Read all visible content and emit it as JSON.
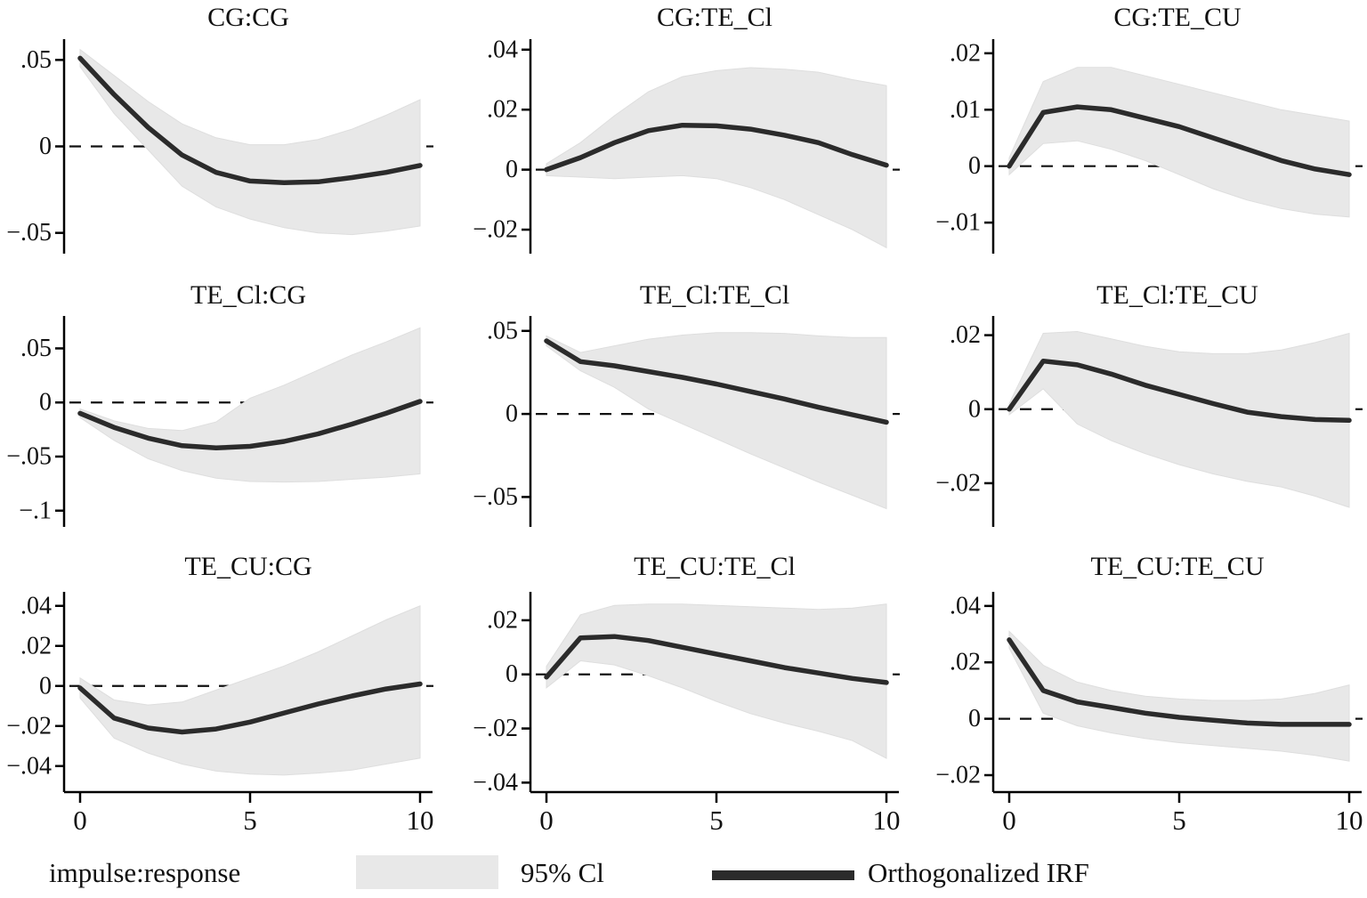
{
  "figure": {
    "kind": "impulse-response-function-matrix",
    "colors": {
      "background": "#ffffff",
      "band": "#e8e8e8",
      "band_edge": "#dedede",
      "line": "#2b2b2b",
      "text": "#111111",
      "axis": "#000000",
      "zero_line": "#111111"
    }
  },
  "legend": {
    "impulse_response_label": "impulse:response",
    "ci_label": "95% Cl",
    "irf_label": "Orthogonalized IRF"
  },
  "chart_data": [
    {
      "type": "line",
      "title": "CG:CG",
      "impulse": "CG",
      "response": "CG",
      "x": [
        0,
        1,
        2,
        3,
        4,
        5,
        6,
        7,
        8,
        9,
        10
      ],
      "irf": [
        0.051,
        0.03,
        0.011,
        -0.005,
        -0.015,
        -0.02,
        -0.021,
        -0.0205,
        -0.018,
        -0.015,
        -0.011
      ],
      "ci_upper": [
        0.056,
        0.041,
        0.026,
        0.013,
        0.005,
        0.001,
        0.001,
        0.004,
        0.01,
        0.018,
        0.027
      ],
      "ci_lower": [
        0.046,
        0.019,
        -0.002,
        -0.023,
        -0.035,
        -0.042,
        -0.047,
        -0.05,
        -0.051,
        -0.049,
        -0.046
      ],
      "ylim": [
        -0.062,
        0.062
      ],
      "yticks": [
        0.05,
        0,
        -0.05
      ],
      "ytick_labels": [
        ".05",
        "0",
        "−.05"
      ],
      "xlim": [
        0,
        10.4
      ],
      "xticks": [
        0,
        5,
        10
      ],
      "xtick_labels": [],
      "zero_line": "dashed",
      "grid": false
    },
    {
      "type": "line",
      "title": "CG:TE_Cl",
      "impulse": "CG",
      "response": "TE_Cl",
      "x": [
        0,
        1,
        2,
        3,
        4,
        5,
        6,
        7,
        8,
        9,
        10
      ],
      "irf": [
        0.0,
        0.004,
        0.009,
        0.013,
        0.0148,
        0.0146,
        0.0135,
        0.0115,
        0.009,
        0.005,
        0.0015
      ],
      "ci_upper": [
        0.002,
        0.009,
        0.018,
        0.026,
        0.031,
        0.033,
        0.034,
        0.0335,
        0.0325,
        0.03,
        0.028
      ],
      "ci_lower": [
        -0.002,
        -0.0025,
        -0.003,
        -0.0025,
        -0.002,
        -0.003,
        -0.006,
        -0.01,
        -0.015,
        -0.02,
        -0.026
      ],
      "ylim": [
        -0.028,
        0.0435
      ],
      "yticks": [
        0.04,
        0.02,
        0,
        -0.02
      ],
      "ytick_labels": [
        ".04",
        ".02",
        "0",
        "−.02"
      ],
      "xlim": [
        0,
        10.4
      ],
      "xticks": [
        0,
        5,
        10
      ],
      "xtick_labels": [],
      "zero_line": "dashed",
      "grid": false
    },
    {
      "type": "line",
      "title": "CG:TE_CU",
      "impulse": "CG",
      "response": "TE_CU",
      "x": [
        0,
        1,
        2,
        3,
        4,
        5,
        6,
        7,
        8,
        9,
        10
      ],
      "irf": [
        0.0,
        0.0095,
        0.0105,
        0.01,
        0.0085,
        0.007,
        0.005,
        0.003,
        0.001,
        -0.0005,
        -0.0015
      ],
      "ci_upper": [
        0.0015,
        0.015,
        0.0175,
        0.0175,
        0.016,
        0.0145,
        0.013,
        0.0115,
        0.01,
        0.009,
        0.008
      ],
      "ci_lower": [
        -0.0015,
        0.004,
        0.0045,
        0.003,
        0.001,
        -0.0015,
        -0.004,
        -0.006,
        -0.0075,
        -0.0085,
        -0.009
      ],
      "ylim": [
        -0.0155,
        0.0225
      ],
      "yticks": [
        0.02,
        0.01,
        0,
        -0.01
      ],
      "ytick_labels": [
        ".02",
        ".01",
        "0",
        "−.01"
      ],
      "xlim": [
        0,
        10.4
      ],
      "xticks": [
        0,
        5,
        10
      ],
      "xtick_labels": [],
      "zero_line": "dashed",
      "grid": false
    },
    {
      "type": "line",
      "title": "TE_Cl:CG",
      "impulse": "TE_Cl",
      "response": "CG",
      "x": [
        0,
        1,
        2,
        3,
        4,
        5,
        6,
        7,
        8,
        9,
        10
      ],
      "irf": [
        -0.01,
        -0.023,
        -0.033,
        -0.04,
        -0.042,
        -0.0405,
        -0.036,
        -0.029,
        -0.02,
        -0.01,
        0.001
      ],
      "ci_upper": [
        -0.006,
        -0.017,
        -0.024,
        -0.026,
        -0.018,
        0.004,
        0.016,
        0.03,
        0.044,
        0.056,
        0.069
      ],
      "ci_lower": [
        -0.014,
        -0.035,
        -0.052,
        -0.063,
        -0.07,
        -0.073,
        -0.0735,
        -0.073,
        -0.071,
        -0.069,
        -0.066
      ],
      "ylim": [
        -0.115,
        0.08
      ],
      "yticks": [
        0.05,
        0,
        -0.05,
        -0.1
      ],
      "ytick_labels": [
        ".05",
        "0",
        "−.05",
        "−.1"
      ],
      "xlim": [
        0,
        10.4
      ],
      "xticks": [
        0,
        5,
        10
      ],
      "xtick_labels": [],
      "zero_line": "dashed",
      "grid": false
    },
    {
      "type": "line",
      "title": "TE_Cl:TE_Cl",
      "impulse": "TE_Cl",
      "response": "TE_Cl",
      "x": [
        0,
        1,
        2,
        3,
        4,
        5,
        6,
        7,
        8,
        9,
        10
      ],
      "irf": [
        0.044,
        0.0315,
        0.029,
        0.0255,
        0.022,
        0.018,
        0.0135,
        0.009,
        0.004,
        -0.0005,
        -0.005
      ],
      "ci_upper": [
        0.047,
        0.037,
        0.041,
        0.045,
        0.0475,
        0.049,
        0.049,
        0.0485,
        0.047,
        0.046,
        0.046
      ],
      "ci_lower": [
        0.041,
        0.026,
        0.016,
        0.003,
        -0.006,
        -0.015,
        -0.024,
        -0.0325,
        -0.041,
        -0.049,
        -0.057
      ],
      "ylim": [
        -0.068,
        0.059
      ],
      "yticks": [
        0.05,
        0,
        -0.05
      ],
      "ytick_labels": [
        ".05",
        "0",
        "−.05"
      ],
      "xlim": [
        0,
        10.4
      ],
      "xticks": [
        0,
        5,
        10
      ],
      "xtick_labels": [],
      "zero_line": "dashed",
      "grid": false
    },
    {
      "type": "line",
      "title": "TE_Cl:TE_CU",
      "impulse": "TE_Cl",
      "response": "TE_CU",
      "x": [
        0,
        1,
        2,
        3,
        4,
        5,
        6,
        7,
        8,
        9,
        10
      ],
      "irf": [
        0.0,
        0.013,
        0.012,
        0.0095,
        0.0065,
        0.004,
        0.0015,
        -0.0008,
        -0.002,
        -0.0028,
        -0.003
      ],
      "ci_upper": [
        0.0015,
        0.0205,
        0.021,
        0.019,
        0.017,
        0.0155,
        0.015,
        0.015,
        0.016,
        0.018,
        0.0205
      ],
      "ci_lower": [
        -0.0015,
        0.0055,
        -0.004,
        -0.0085,
        -0.012,
        -0.015,
        -0.0175,
        -0.0195,
        -0.021,
        -0.0235,
        -0.0265
      ],
      "ylim": [
        -0.0318,
        0.0252
      ],
      "yticks": [
        0.02,
        0,
        -0.02
      ],
      "ytick_labels": [
        ".02",
        "0",
        "−.02"
      ],
      "xlim": [
        0,
        10.4
      ],
      "xticks": [
        0,
        5,
        10
      ],
      "xtick_labels": [],
      "zero_line": "dashed",
      "grid": false
    },
    {
      "type": "line",
      "title": "TE_CU:CG",
      "impulse": "TE_CU",
      "response": "CG",
      "x": [
        0,
        1,
        2,
        3,
        4,
        5,
        6,
        7,
        8,
        9,
        10
      ],
      "irf": [
        -0.001,
        -0.016,
        -0.021,
        -0.023,
        -0.0215,
        -0.018,
        -0.0135,
        -0.009,
        -0.005,
        -0.0015,
        0.001
      ],
      "ci_upper": [
        0.004,
        -0.007,
        -0.0095,
        -0.008,
        -0.002,
        0.004,
        0.01,
        0.017,
        0.025,
        0.033,
        0.04
      ],
      "ci_lower": [
        -0.006,
        -0.026,
        -0.0335,
        -0.039,
        -0.0425,
        -0.044,
        -0.0445,
        -0.0435,
        -0.042,
        -0.039,
        -0.036
      ],
      "ylim": [
        -0.053,
        0.047
      ],
      "yticks": [
        0.04,
        0.02,
        0,
        -0.02,
        -0.04
      ],
      "ytick_labels": [
        ".04",
        ".02",
        "0",
        "−.02",
        "−.04"
      ],
      "xlim": [
        0,
        10.4
      ],
      "xticks": [
        0,
        5,
        10
      ],
      "xtick_labels": [
        "0",
        "5",
        "10"
      ],
      "zero_line": "dashed",
      "grid": false
    },
    {
      "type": "line",
      "title": "TE_CU:TE_Cl",
      "impulse": "TE_CU",
      "response": "TE_Cl",
      "x": [
        0,
        1,
        2,
        3,
        4,
        5,
        6,
        7,
        8,
        9,
        10
      ],
      "irf": [
        -0.001,
        0.0135,
        0.014,
        0.0125,
        0.01,
        0.0075,
        0.005,
        0.0025,
        0.0005,
        -0.0015,
        -0.003
      ],
      "ci_upper": [
        0.003,
        0.022,
        0.0255,
        0.026,
        0.026,
        0.0255,
        0.025,
        0.0245,
        0.024,
        0.0245,
        0.026
      ],
      "ci_lower": [
        -0.005,
        0.005,
        0.0035,
        -0.0005,
        -0.005,
        -0.01,
        -0.0145,
        -0.018,
        -0.021,
        -0.0245,
        -0.031
      ],
      "ylim": [
        -0.0435,
        0.0305
      ],
      "yticks": [
        0.02,
        0,
        -0.02,
        -0.04
      ],
      "ytick_labels": [
        ".02",
        "0",
        "−.02",
        "−.04"
      ],
      "xlim": [
        0,
        10.4
      ],
      "xticks": [
        0,
        5,
        10
      ],
      "xtick_labels": [
        "0",
        "5",
        "10"
      ],
      "zero_line": "dashed",
      "grid": false
    },
    {
      "type": "line",
      "title": "TE_CU:TE_CU",
      "impulse": "TE_CU",
      "response": "TE_CU",
      "x": [
        0,
        1,
        2,
        3,
        4,
        5,
        6,
        7,
        8,
        9,
        10
      ],
      "irf": [
        0.028,
        0.01,
        0.006,
        0.004,
        0.002,
        0.0005,
        -0.0005,
        -0.0015,
        -0.002,
        -0.002,
        -0.002
      ],
      "ci_upper": [
        0.031,
        0.019,
        0.013,
        0.01,
        0.008,
        0.007,
        0.0065,
        0.0065,
        0.007,
        0.009,
        0.012
      ],
      "ci_lower": [
        0.025,
        0.002,
        -0.0025,
        -0.005,
        -0.007,
        -0.0085,
        -0.0095,
        -0.0105,
        -0.0115,
        -0.013,
        -0.015
      ],
      "ylim": [
        -0.026,
        0.045
      ],
      "yticks": [
        0.04,
        0.02,
        0,
        -0.02
      ],
      "ytick_labels": [
        ".04",
        ".02",
        "0",
        "−.02"
      ],
      "xlim": [
        0,
        10.4
      ],
      "xticks": [
        0,
        5,
        10
      ],
      "xtick_labels": [
        "0",
        "5",
        "10"
      ],
      "zero_line": "dashed",
      "grid": false
    }
  ]
}
